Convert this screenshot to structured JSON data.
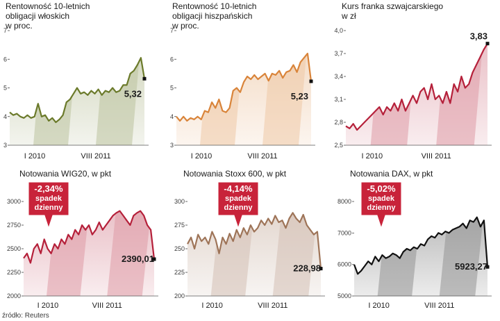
{
  "source": "źródło: Reuters",
  "chart_data": [
    {
      "type": "line",
      "title": [
        "Rentowność 10-letnich",
        "obligacji włoskich",
        "w proc."
      ],
      "color": "#6b7a2a",
      "ylim": [
        3,
        7
      ],
      "yticks": [
        "3",
        "4",
        "5",
        "6",
        "7"
      ],
      "x_labels": [
        "I 2010",
        "VIII 2011"
      ],
      "last_label": "5,32",
      "series": [
        {
          "name": "Rentowność 10-letnich obligacji włoskich",
          "values": [
            4.15,
            4.05,
            4.1,
            4.0,
            3.95,
            4.05,
            3.95,
            4.0,
            4.45,
            4.0,
            4.05,
            3.85,
            3.95,
            3.8,
            3.9,
            4.05,
            4.5,
            4.6,
            4.8,
            5.0,
            4.8,
            4.85,
            4.75,
            4.9,
            4.8,
            4.95,
            4.75,
            4.9,
            4.85,
            5.0,
            4.85,
            4.9,
            5.1,
            5.1,
            5.5,
            5.6,
            5.8,
            6.05,
            5.32
          ]
        }
      ]
    },
    {
      "type": "line",
      "title": [
        "Rentowność 10-letnich",
        "obligacji hiszpańskich",
        "w proc."
      ],
      "color": "#d9843a",
      "ylim": [
        3,
        7
      ],
      "yticks": [
        "3",
        "4",
        "5",
        "6",
        "7"
      ],
      "x_labels": [
        "I 2010",
        "VIII 2011"
      ],
      "last_label": "5,23",
      "series": [
        {
          "name": "Rentowność 10-letnich obligacji hiszpańskich",
          "values": [
            4.0,
            3.85,
            4.0,
            3.85,
            3.95,
            3.9,
            4.0,
            3.9,
            4.2,
            4.15,
            4.5,
            4.3,
            4.6,
            4.2,
            4.15,
            4.3,
            4.9,
            5.0,
            4.85,
            5.2,
            5.4,
            5.3,
            5.45,
            5.3,
            5.4,
            5.5,
            5.25,
            5.5,
            5.45,
            5.6,
            5.35,
            5.55,
            5.6,
            5.8,
            5.55,
            5.9,
            6.05,
            6.2,
            5.23
          ]
        }
      ]
    },
    {
      "type": "line",
      "title": [
        "Kurs franka szwajcarskiego",
        "w zł"
      ],
      "color": "#b5203a",
      "ylim": [
        2.5,
        4.0
      ],
      "yticks": [
        "2,5",
        "2,8",
        "3,1",
        "3,4",
        "3,7",
        "4,0"
      ],
      "x_labels": [
        "I 2010",
        "VIII 2011"
      ],
      "last_label": "3,83",
      "series": [
        {
          "name": "Kurs franka szwajcarskiego",
          "values": [
            2.75,
            2.72,
            2.78,
            2.7,
            2.75,
            2.8,
            2.85,
            2.9,
            2.95,
            3.0,
            2.9,
            3.0,
            2.95,
            3.05,
            2.95,
            3.1,
            2.95,
            3.05,
            3.15,
            3.05,
            3.2,
            3.25,
            3.1,
            3.3,
            3.1,
            3.15,
            3.05,
            3.2,
            3.05,
            3.3,
            3.2,
            3.4,
            3.25,
            3.3,
            3.45,
            3.55,
            3.65,
            3.75,
            3.83
          ]
        }
      ]
    },
    {
      "type": "line",
      "title": [
        "Notowania WIG20, w pkt"
      ],
      "color": "#b5203a",
      "ylim": [
        2000,
        3000
      ],
      "yticks": [
        "2000",
        "2250",
        "2500",
        "2750",
        "3000"
      ],
      "x_labels": [
        "I 2010",
        "VIII 2011"
      ],
      "last_label": "2390,01",
      "arrow": {
        "lines": [
          "-2,34%",
          "spadek",
          "dzienny"
        ]
      },
      "series": [
        {
          "name": "Notowania WIG20",
          "values": [
            2400,
            2450,
            2350,
            2500,
            2550,
            2450,
            2600,
            2500,
            2450,
            2550,
            2500,
            2600,
            2550,
            2650,
            2600,
            2700,
            2650,
            2750,
            2700,
            2750,
            2650,
            2700,
            2780,
            2700,
            2750,
            2800,
            2850,
            2880,
            2900,
            2850,
            2800,
            2750,
            2850,
            2880,
            2900,
            2850,
            2750,
            2700,
            2390
          ]
        }
      ]
    },
    {
      "type": "line",
      "title": [
        "Notowania Stoxx 600, w pkt"
      ],
      "color": "#9e7458",
      "ylim": [
        200,
        300
      ],
      "yticks": [
        "200",
        "225",
        "250",
        "275",
        "300"
      ],
      "x_labels": [
        "I 2010",
        "VIII 2011"
      ],
      "last_label": "228,98",
      "arrow": {
        "lines": [
          "-4,14%",
          "spadek",
          "dzienny"
        ]
      },
      "series": [
        {
          "name": "Notowania Stoxx 600",
          "values": [
            255,
            262,
            250,
            265,
            258,
            262,
            255,
            268,
            260,
            245,
            262,
            255,
            266,
            258,
            270,
            262,
            272,
            265,
            275,
            268,
            272,
            280,
            275,
            282,
            276,
            285,
            278,
            280,
            272,
            282,
            288,
            282,
            278,
            286,
            275,
            270,
            265,
            268,
            229
          ]
        }
      ]
    },
    {
      "type": "line",
      "title": [
        "Notowania DAX, w pkt"
      ],
      "color": "#111111",
      "ylim": [
        5000,
        8000
      ],
      "yticks": [
        "5000",
        "6000",
        "7000",
        "8000"
      ],
      "x_labels": [
        "I 2010",
        "VIII 2011"
      ],
      "last_label": "5923,27",
      "arrow": {
        "lines": [
          "-5,02%",
          "spadek",
          "dzienny"
        ]
      },
      "series": [
        {
          "name": "Notowania DAX",
          "values": [
            6000,
            5700,
            5800,
            5950,
            6100,
            6000,
            6250,
            6100,
            6300,
            6200,
            6250,
            6350,
            6300,
            6200,
            6400,
            6500,
            6450,
            6550,
            6500,
            6650,
            6600,
            6800,
            6900,
            6850,
            7000,
            6950,
            7050,
            7000,
            7100,
            7150,
            7200,
            7300,
            7150,
            7400,
            7350,
            7500,
            7200,
            7400,
            5923
          ]
        }
      ]
    }
  ]
}
